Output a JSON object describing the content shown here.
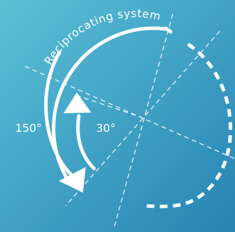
{
  "diagram": {
    "title": "Reciprocating system",
    "angle_large_label": "150°",
    "angle_small_label": "30°",
    "angles_deg": {
      "large": 150,
      "small": 30
    },
    "colors": {
      "background_top": "#5cc0d6",
      "background_bottom": "#2684b4",
      "foreground": "#ffffff"
    }
  }
}
